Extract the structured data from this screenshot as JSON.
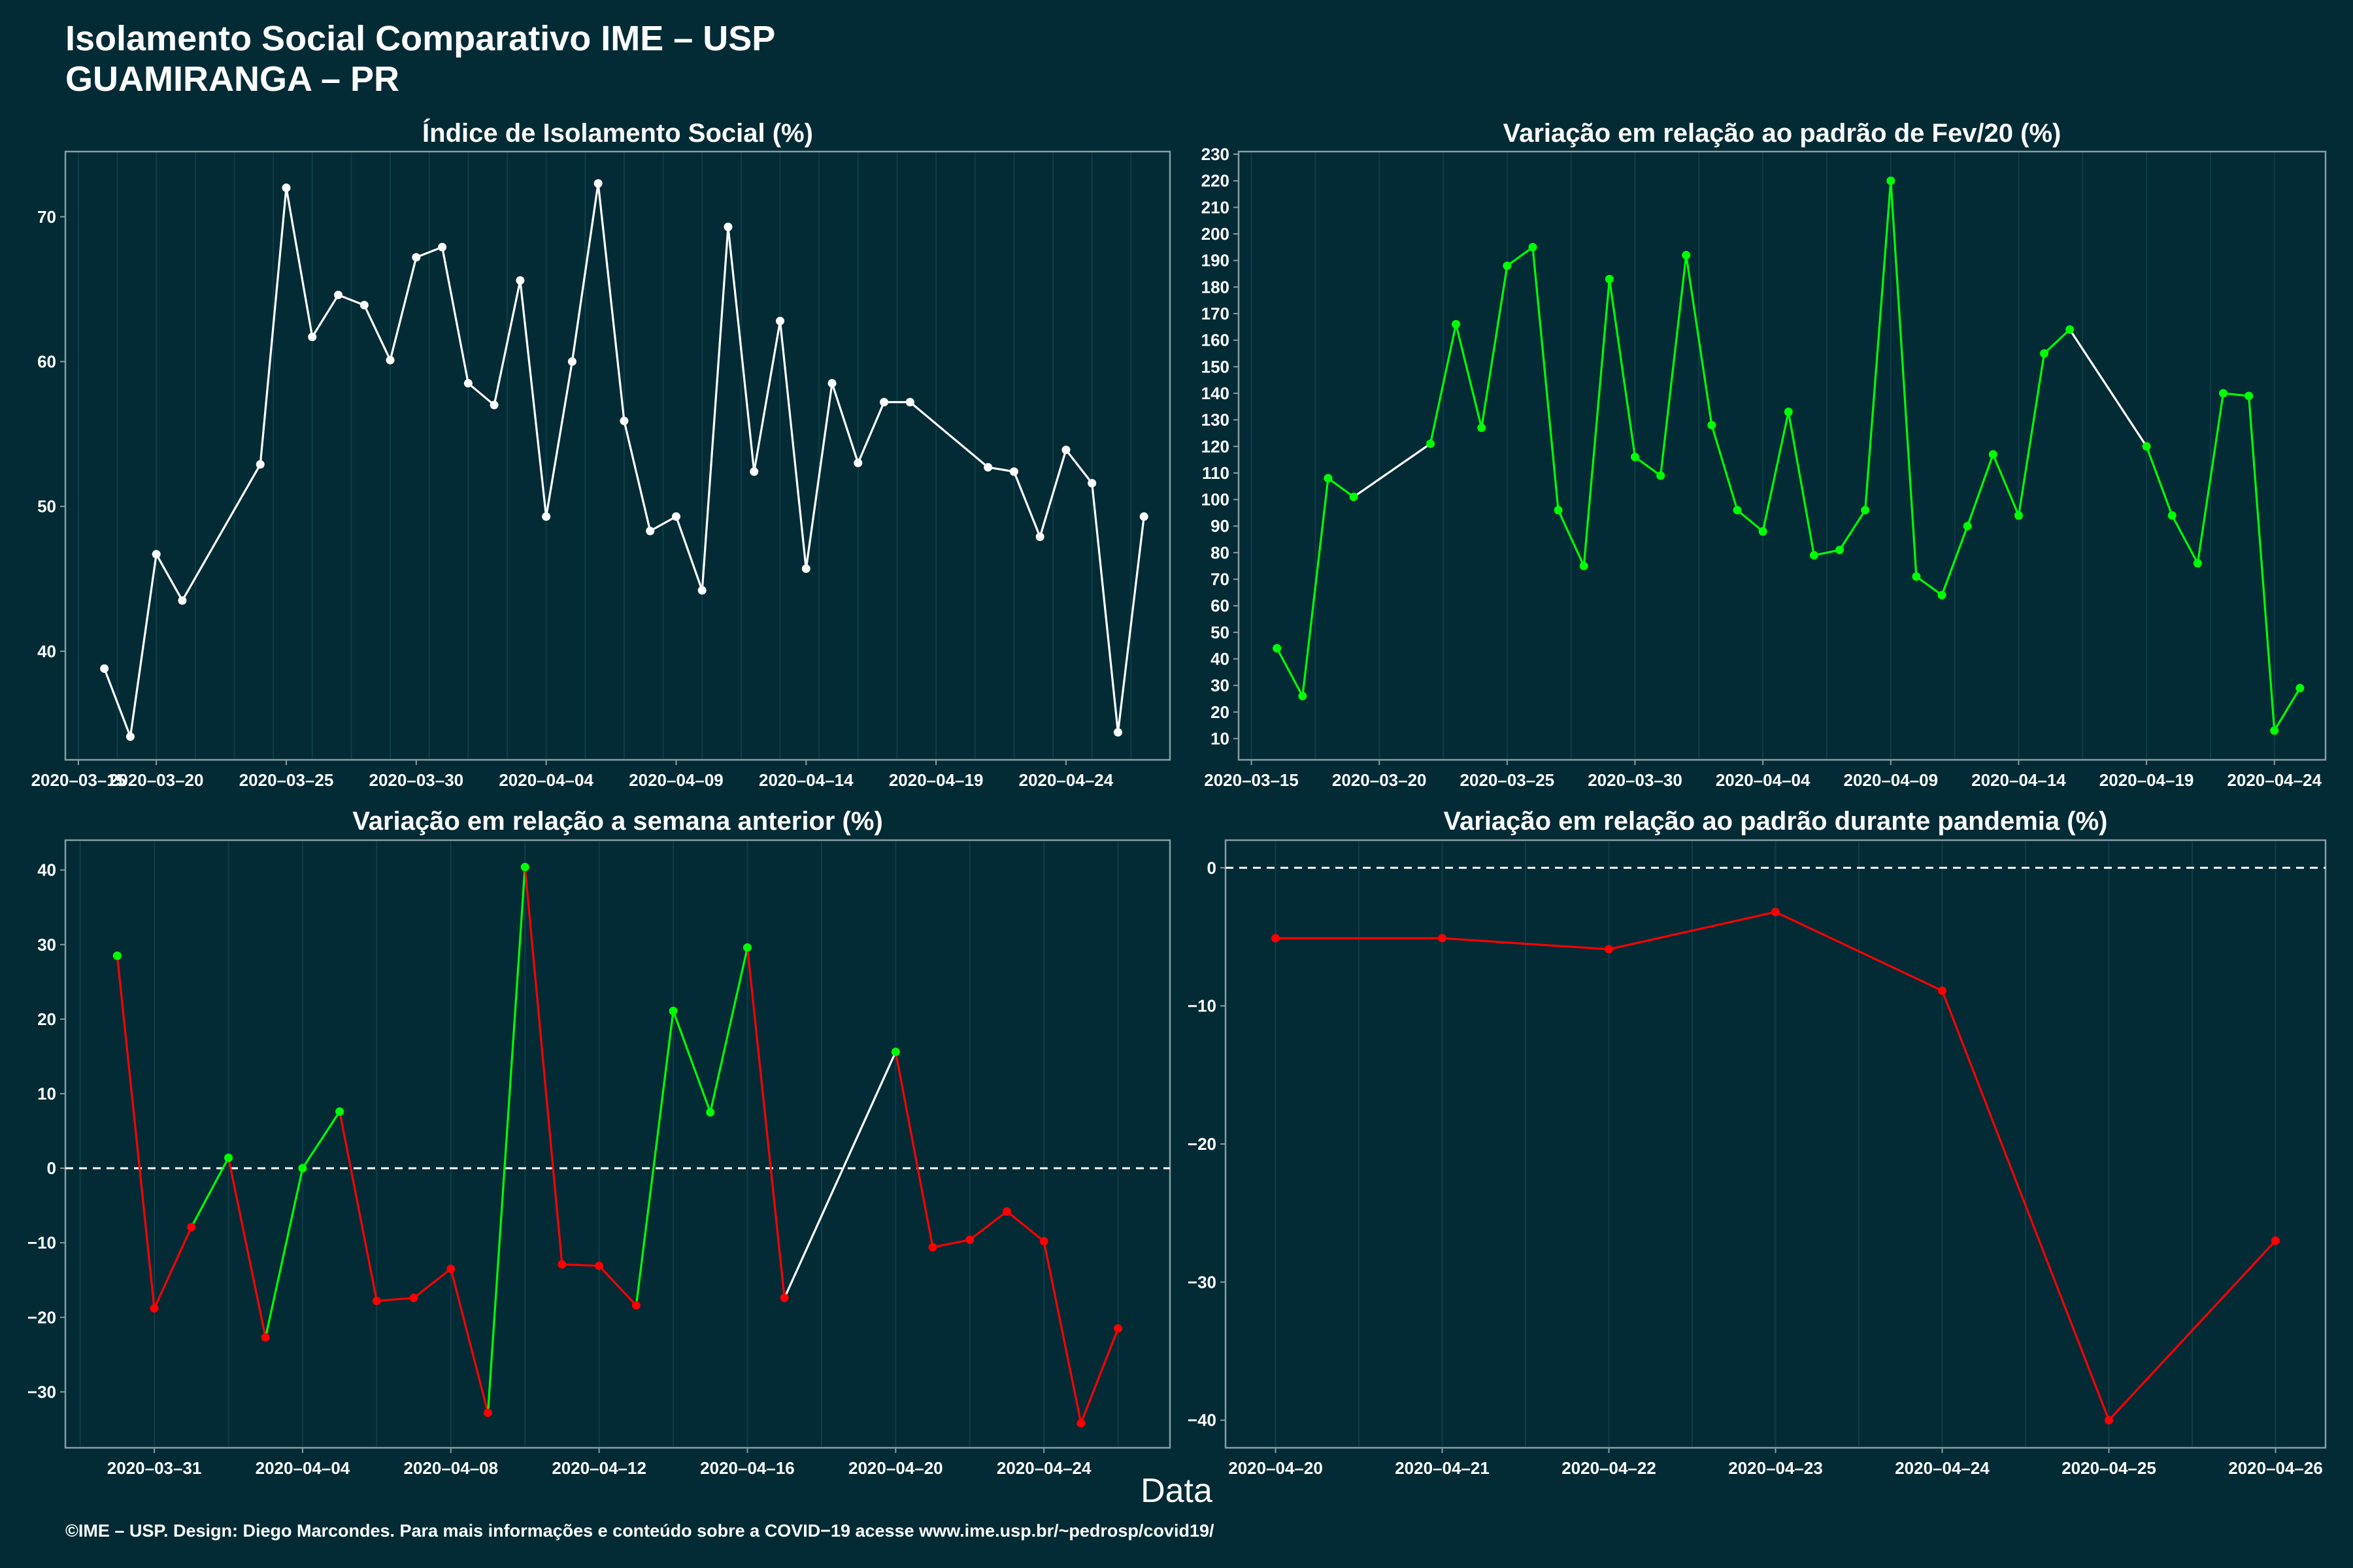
{
  "header": {
    "title": "Isolamento Social Comparativo IME – USP",
    "subtitle": "GUAMIRANGA – PR"
  },
  "x_axis_label": "Data",
  "footer": "©IME – USP. Design: Diego Marcondes. Para mais informações e conteúdo sobre a COVID−19 acesse www.ime.usp.br/~pedrosp/covid19/",
  "colors": {
    "background": "#022b36",
    "panel_border": "#8a9ca3",
    "grid": "#0f3d48",
    "increase": "#00ff00",
    "decrease": "#ff0000",
    "neutral": "#ffffff",
    "reference_line": "#ffffff"
  },
  "chart_data": [
    {
      "id": "p1",
      "type": "line",
      "title": "Índice de Isolamento Social (%)",
      "start_date": "2020-03-17",
      "xlim": [
        -1.5,
        41
      ],
      "ylim": [
        32.5,
        74.5
      ],
      "grid": true,
      "xticks": [
        {
          "pos": -1,
          "label": "2020–03–15"
        },
        {
          "pos": 2,
          "label": "2020–03–20"
        },
        {
          "pos": 7,
          "label": "2020–03–25"
        },
        {
          "pos": 12,
          "label": "2020–03–30"
        },
        {
          "pos": 17,
          "label": "2020–04–04"
        },
        {
          "pos": 22,
          "label": "2020–04–09"
        },
        {
          "pos": 27,
          "label": "2020–04–14"
        },
        {
          "pos": 32,
          "label": "2020–04–19"
        },
        {
          "pos": 37,
          "label": "2020–04–24"
        }
      ],
      "yticks": [
        {
          "v": 40,
          "label": "40"
        },
        {
          "v": 50,
          "label": "50"
        },
        {
          "v": 60,
          "label": "60"
        },
        {
          "v": 70,
          "label": "70"
        }
      ],
      "points": [
        {
          "x": 0,
          "y": 38.8,
          "c": "neutral"
        },
        {
          "x": 1,
          "y": 34.1,
          "c": "neutral"
        },
        {
          "x": 2,
          "y": 46.7,
          "c": "neutral"
        },
        {
          "x": 3,
          "y": 43.5,
          "c": "neutral"
        },
        {
          "x": 6,
          "y": 52.9,
          "c": "neutral"
        },
        {
          "x": 7,
          "y": 72.0,
          "c": "neutral"
        },
        {
          "x": 8,
          "y": 61.7,
          "c": "neutral"
        },
        {
          "x": 9,
          "y": 64.6,
          "c": "neutral"
        },
        {
          "x": 10,
          "y": 63.9,
          "c": "neutral"
        },
        {
          "x": 11,
          "y": 60.1,
          "c": "neutral"
        },
        {
          "x": 12,
          "y": 67.2,
          "c": "neutral"
        },
        {
          "x": 13,
          "y": 67.9,
          "c": "neutral"
        },
        {
          "x": 14,
          "y": 58.5,
          "c": "neutral"
        },
        {
          "x": 15,
          "y": 57.0,
          "c": "neutral"
        },
        {
          "x": 16,
          "y": 65.6,
          "c": "neutral"
        },
        {
          "x": 17,
          "y": 49.3,
          "c": "neutral"
        },
        {
          "x": 18,
          "y": 60.0,
          "c": "neutral"
        },
        {
          "x": 19,
          "y": 72.3,
          "c": "neutral"
        },
        {
          "x": 20,
          "y": 55.9,
          "c": "neutral"
        },
        {
          "x": 21,
          "y": 48.3,
          "c": "neutral"
        },
        {
          "x": 22,
          "y": 49.3,
          "c": "neutral"
        },
        {
          "x": 23,
          "y": 44.2,
          "c": "neutral"
        },
        {
          "x": 24,
          "y": 69.3,
          "c": "neutral"
        },
        {
          "x": 25,
          "y": 52.4,
          "c": "neutral"
        },
        {
          "x": 26,
          "y": 62.8,
          "c": "neutral"
        },
        {
          "x": 27,
          "y": 45.7,
          "c": "neutral"
        },
        {
          "x": 28,
          "y": 58.5,
          "c": "neutral"
        },
        {
          "x": 29,
          "y": 53.0,
          "c": "neutral"
        },
        {
          "x": 30,
          "y": 57.2,
          "c": "neutral"
        },
        {
          "x": 31,
          "y": 57.2,
          "c": "neutral"
        },
        {
          "x": 34,
          "y": 52.7,
          "c": "neutral"
        },
        {
          "x": 35,
          "y": 52.4,
          "c": "neutral"
        },
        {
          "x": 36,
          "y": 47.9,
          "c": "neutral"
        },
        {
          "x": 37,
          "y": 53.9,
          "c": "neutral"
        },
        {
          "x": 38,
          "y": 51.6,
          "c": "neutral"
        },
        {
          "x": 39,
          "y": 34.4,
          "c": "neutral"
        },
        {
          "x": 40,
          "y": 49.3,
          "c": "neutral"
        }
      ]
    },
    {
      "id": "p2",
      "type": "line",
      "title": "Variação em relação ao padrão de Fev/20 (%)",
      "start_date": "2020-03-17",
      "xlim": [
        -1.5,
        41
      ],
      "ylim": [
        2,
        231
      ],
      "grid": true,
      "xticks": [
        {
          "pos": -1,
          "label": "2020–03–15"
        },
        {
          "pos": 4,
          "label": "2020–03–20"
        },
        {
          "pos": 9,
          "label": "2020–03–25"
        },
        {
          "pos": 14,
          "label": "2020–03–30"
        },
        {
          "pos": 19,
          "label": "2020–04–04"
        },
        {
          "pos": 24,
          "label": "2020–04–09"
        },
        {
          "pos": 29,
          "label": "2020–04–14"
        },
        {
          "pos": 34,
          "label": "2020–04–19"
        },
        {
          "pos": 39,
          "label": "2020–04–24"
        }
      ],
      "yticks": [
        {
          "v": 10,
          "label": "10"
        },
        {
          "v": 20,
          "label": "20"
        },
        {
          "v": 30,
          "label": "30"
        },
        {
          "v": 40,
          "label": "40"
        },
        {
          "v": 50,
          "label": "50"
        },
        {
          "v": 60,
          "label": "60"
        },
        {
          "v": 70,
          "label": "70"
        },
        {
          "v": 80,
          "label": "80"
        },
        {
          "v": 90,
          "label": "90"
        },
        {
          "v": 100,
          "label": "100"
        },
        {
          "v": 110,
          "label": "110"
        },
        {
          "v": 120,
          "label": "120"
        },
        {
          "v": 130,
          "label": "130"
        },
        {
          "v": 140,
          "label": "140"
        },
        {
          "v": 150,
          "label": "150"
        },
        {
          "v": 160,
          "label": "160"
        },
        {
          "v": 170,
          "label": "170"
        },
        {
          "v": 180,
          "label": "180"
        },
        {
          "v": 190,
          "label": "190"
        },
        {
          "v": 200,
          "label": "200"
        },
        {
          "v": 210,
          "label": "210"
        },
        {
          "v": 220,
          "label": "220"
        },
        {
          "v": 230,
          "label": "230"
        }
      ],
      "points": [
        {
          "x": 0,
          "y": 44,
          "c": "increase"
        },
        {
          "x": 1,
          "y": 26,
          "c": "increase"
        },
        {
          "x": 2,
          "y": 108,
          "c": "increase"
        },
        {
          "x": 3,
          "y": 101,
          "c": "increase"
        },
        {
          "x": 6,
          "y": 121,
          "c": "increase"
        },
        {
          "x": 7,
          "y": 166,
          "c": "increase"
        },
        {
          "x": 8,
          "y": 127,
          "c": "increase"
        },
        {
          "x": 9,
          "y": 188,
          "c": "increase"
        },
        {
          "x": 10,
          "y": 195,
          "c": "increase"
        },
        {
          "x": 11,
          "y": 96,
          "c": "increase"
        },
        {
          "x": 12,
          "y": 75,
          "c": "increase"
        },
        {
          "x": 13,
          "y": 183,
          "c": "increase"
        },
        {
          "x": 14,
          "y": 116,
          "c": "increase"
        },
        {
          "x": 15,
          "y": 109,
          "c": "increase"
        },
        {
          "x": 16,
          "y": 192,
          "c": "increase"
        },
        {
          "x": 17,
          "y": 128,
          "c": "increase"
        },
        {
          "x": 18,
          "y": 96,
          "c": "increase"
        },
        {
          "x": 19,
          "y": 88,
          "c": "increase"
        },
        {
          "x": 20,
          "y": 133,
          "c": "increase"
        },
        {
          "x": 21,
          "y": 79,
          "c": "increase"
        },
        {
          "x": 22,
          "y": 81,
          "c": "increase"
        },
        {
          "x": 23,
          "y": 96,
          "c": "increase"
        },
        {
          "x": 24,
          "y": 220,
          "c": "increase"
        },
        {
          "x": 25,
          "y": 71,
          "c": "increase"
        },
        {
          "x": 26,
          "y": 64,
          "c": "increase"
        },
        {
          "x": 27,
          "y": 90,
          "c": "increase"
        },
        {
          "x": 28,
          "y": 117,
          "c": "increase"
        },
        {
          "x": 29,
          "y": 94,
          "c": "increase"
        },
        {
          "x": 30,
          "y": 155,
          "c": "increase"
        },
        {
          "x": 31,
          "y": 164,
          "c": "increase"
        },
        {
          "x": 34,
          "y": 120,
          "c": "increase"
        },
        {
          "x": 35,
          "y": 94,
          "c": "increase"
        },
        {
          "x": 36,
          "y": 76,
          "c": "increase"
        },
        {
          "x": 37,
          "y": 140,
          "c": "increase"
        },
        {
          "x": 38,
          "y": 139,
          "c": "increase"
        },
        {
          "x": 39,
          "y": 13,
          "c": "increase"
        },
        {
          "x": 40,
          "y": 29,
          "c": "increase"
        }
      ]
    },
    {
      "id": "p3",
      "type": "line",
      "title": "Variação em relação a semana anterior (%)",
      "start_date": "2020-03-30",
      "xlim": [
        -1.4,
        28.4
      ],
      "ylim": [
        -37.5,
        44
      ],
      "grid": true,
      "reference_line": 0,
      "xticks": [
        {
          "pos": 1,
          "label": "2020–03–31"
        },
        {
          "pos": 5,
          "label": "2020–04–04"
        },
        {
          "pos": 9,
          "label": "2020–04–08"
        },
        {
          "pos": 13,
          "label": "2020–04–12"
        },
        {
          "pos": 17,
          "label": "2020–04–16"
        },
        {
          "pos": 21,
          "label": "2020–04–20"
        },
        {
          "pos": 25,
          "label": "2020–04–24"
        }
      ],
      "yticks": [
        {
          "v": -30,
          "label": "−30"
        },
        {
          "v": -20,
          "label": "−20"
        },
        {
          "v": -10,
          "label": "−10"
        },
        {
          "v": 0,
          "label": "0"
        },
        {
          "v": 10,
          "label": "10"
        },
        {
          "v": 20,
          "label": "20"
        },
        {
          "v": 30,
          "label": "30"
        },
        {
          "v": 40,
          "label": "40"
        }
      ],
      "points": [
        {
          "x": 0,
          "y": 28.5,
          "c": "increase"
        },
        {
          "x": 1,
          "y": -18.8,
          "c": "decrease"
        },
        {
          "x": 2,
          "y": -7.9,
          "c": "decrease"
        },
        {
          "x": 3,
          "y": 1.4,
          "c": "increase"
        },
        {
          "x": 4,
          "y": -22.7,
          "c": "decrease"
        },
        {
          "x": 5,
          "y": 0.0,
          "c": "increase"
        },
        {
          "x": 6,
          "y": 7.6,
          "c": "increase"
        },
        {
          "x": 7,
          "y": -17.8,
          "c": "decrease"
        },
        {
          "x": 8,
          "y": -17.4,
          "c": "decrease"
        },
        {
          "x": 9,
          "y": -13.5,
          "c": "decrease"
        },
        {
          "x": 10,
          "y": -32.8,
          "c": "decrease"
        },
        {
          "x": 11,
          "y": 40.4,
          "c": "increase"
        },
        {
          "x": 12,
          "y": -12.9,
          "c": "decrease"
        },
        {
          "x": 13,
          "y": -13.1,
          "c": "decrease"
        },
        {
          "x": 14,
          "y": -18.4,
          "c": "decrease"
        },
        {
          "x": 15,
          "y": 21.1,
          "c": "increase"
        },
        {
          "x": 16,
          "y": 7.5,
          "c": "increase"
        },
        {
          "x": 17,
          "y": 29.6,
          "c": "increase"
        },
        {
          "x": 18,
          "y": -17.4,
          "c": "decrease"
        },
        {
          "x": 21,
          "y": 15.6,
          "c": "increase"
        },
        {
          "x": 22,
          "y": -10.6,
          "c": "decrease"
        },
        {
          "x": 23,
          "y": -9.6,
          "c": "decrease"
        },
        {
          "x": 24,
          "y": -5.8,
          "c": "decrease"
        },
        {
          "x": 25,
          "y": -9.8,
          "c": "decrease"
        },
        {
          "x": 26,
          "y": -34.2,
          "c": "decrease"
        },
        {
          "x": 27,
          "y": -21.5,
          "c": "decrease"
        }
      ]
    },
    {
      "id": "p4",
      "type": "line",
      "title": "Variação em relação ao padrão durante pandemia (%)",
      "start_date": "2020-04-20",
      "xlim": [
        -0.3,
        6.3
      ],
      "ylim": [
        -42,
        2
      ],
      "grid": true,
      "reference_line": 0,
      "xticks": [
        {
          "pos": 0,
          "label": "2020–04–20"
        },
        {
          "pos": 1,
          "label": "2020–04–21"
        },
        {
          "pos": 2,
          "label": "2020–04–22"
        },
        {
          "pos": 3,
          "label": "2020–04–23"
        },
        {
          "pos": 4,
          "label": "2020–04–24"
        },
        {
          "pos": 5,
          "label": "2020–04–25"
        },
        {
          "pos": 6,
          "label": "2020–04–26"
        }
      ],
      "yticks": [
        {
          "v": -40,
          "label": "−40"
        },
        {
          "v": -30,
          "label": "−30"
        },
        {
          "v": -20,
          "label": "−20"
        },
        {
          "v": -10,
          "label": "−10"
        },
        {
          "v": 0,
          "label": "0"
        }
      ],
      "points": [
        {
          "x": 0,
          "y": -5.1,
          "c": "decrease"
        },
        {
          "x": 1,
          "y": -5.1,
          "c": "decrease"
        },
        {
          "x": 2,
          "y": -5.9,
          "c": "decrease"
        },
        {
          "x": 3,
          "y": -3.2,
          "c": "decrease"
        },
        {
          "x": 4,
          "y": -8.9,
          "c": "decrease"
        },
        {
          "x": 5,
          "y": -40.0,
          "c": "decrease"
        },
        {
          "x": 6,
          "y": -27.0,
          "c": "decrease"
        }
      ]
    }
  ]
}
